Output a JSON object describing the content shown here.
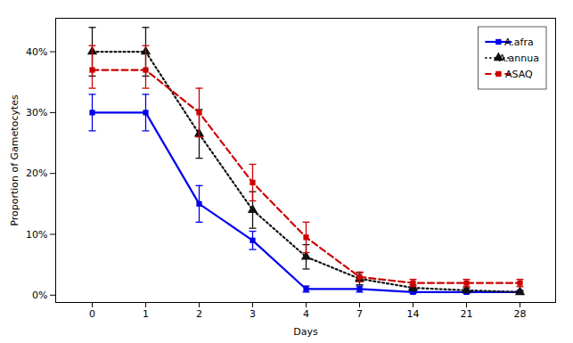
{
  "chart_data": {
    "type": "line",
    "xlabel": "Days",
    "ylabel": "Proportion of Gametocytes",
    "categories": [
      "0",
      "1",
      "2",
      "3",
      "4",
      "7",
      "14",
      "21",
      "28"
    ],
    "series": [
      {
        "name": "A.afra",
        "color": "#0000ee",
        "line_style": "solid",
        "marker": "square",
        "values": [
          0.3,
          0.3,
          0.15,
          0.09,
          0.01,
          0.01,
          0.005,
          0.005,
          0.005
        ],
        "yerr_lo": [
          0.03,
          0.03,
          0.03,
          0.015,
          0.005,
          0.005,
          0.002,
          0.002,
          0.002
        ],
        "yerr_hi": [
          0.03,
          0.03,
          0.03,
          0.015,
          0.005,
          0.005,
          0.002,
          0.002,
          0.002
        ]
      },
      {
        "name": "A.annua",
        "color": "#111111",
        "line_style": "dotted",
        "marker": "triangle",
        "values": [
          0.4,
          0.4,
          0.265,
          0.14,
          0.063,
          0.027,
          0.012,
          0.008,
          0.005
        ],
        "yerr_lo": [
          0.04,
          0.04,
          0.04,
          0.03,
          0.02,
          0.01,
          0.005,
          0.004,
          0.002
        ],
        "yerr_hi": [
          0.04,
          0.04,
          0.04,
          0.03,
          0.02,
          0.01,
          0.005,
          0.004,
          0.002
        ]
      },
      {
        "name": "ASAQ",
        "color": "#cc0000",
        "line_style": "dashed",
        "marker": "square",
        "values": [
          0.37,
          0.37,
          0.3,
          0.185,
          0.095,
          0.03,
          0.02,
          0.02,
          0.02
        ],
        "yerr_lo": [
          0.03,
          0.03,
          0.04,
          0.03,
          0.025,
          0.008,
          0.006,
          0.006,
          0.006
        ],
        "yerr_hi": [
          0.04,
          0.04,
          0.04,
          0.03,
          0.025,
          0.008,
          0.006,
          0.006,
          0.006
        ]
      }
    ],
    "ylim": [
      -0.012,
      0.455
    ],
    "yticks": [
      {
        "value": 0.0,
        "label": "0%"
      },
      {
        "value": 0.1,
        "label": "10%"
      },
      {
        "value": 0.2,
        "label": "20%"
      },
      {
        "value": 0.3,
        "label": "30%"
      },
      {
        "value": 0.4,
        "label": "40%"
      }
    ],
    "grid": false,
    "legend": "upper right"
  }
}
